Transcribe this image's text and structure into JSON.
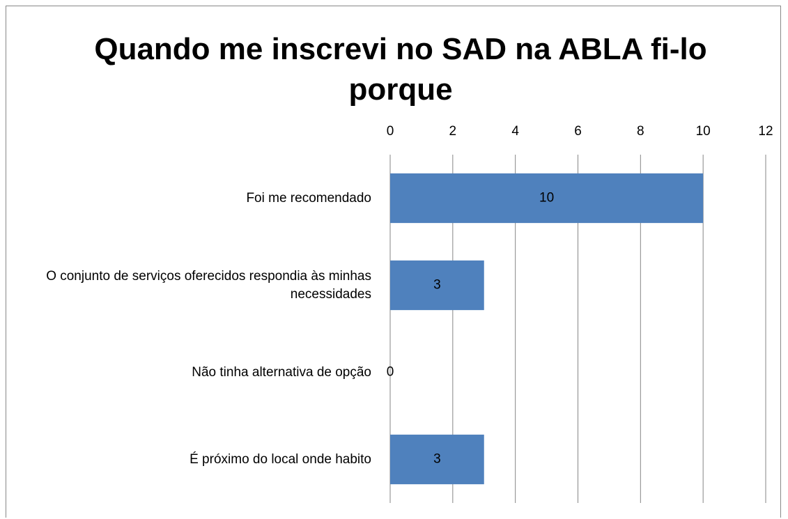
{
  "chart_data": {
    "type": "bar",
    "orientation": "horizontal",
    "title": "Quando me inscrevi no SAD na ABLA fi-lo porque",
    "categories": [
      "Foi me recomendado",
      "O conjunto de serviços oferecidos respondia às minhas necessidades",
      "Não tinha alternativa de opção",
      "É próximo do local onde habito"
    ],
    "values": [
      10,
      3,
      0,
      3
    ],
    "color": "#4f81bd",
    "xlim": [
      0,
      12
    ],
    "xticks": [
      0,
      2,
      4,
      6,
      8,
      10,
      12
    ],
    "grid": true
  }
}
